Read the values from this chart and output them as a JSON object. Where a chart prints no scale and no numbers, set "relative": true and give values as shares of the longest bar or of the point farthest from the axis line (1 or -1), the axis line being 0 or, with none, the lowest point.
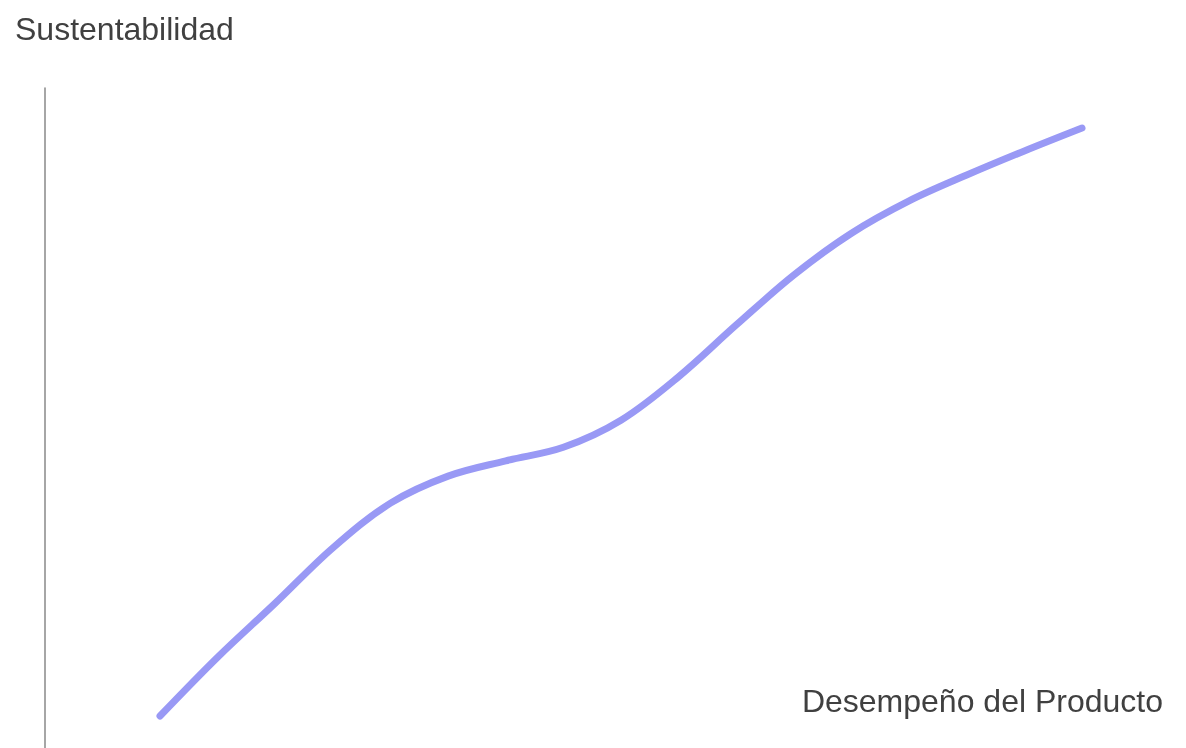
{
  "chart_data": {
    "type": "line",
    "ylabel": "Sustentabilidad",
    "xlabel": "Desempeño del Producto",
    "relative": true,
    "marker": "none",
    "categories": [
      null,
      null,
      null,
      null,
      null,
      null,
      null,
      null,
      null,
      null,
      null,
      null,
      null,
      null,
      null,
      null,
      null
    ],
    "series": [
      {
        "color": "#9999f5",
        "values": [
          0,
          0.1,
          0.192,
          0.286,
          0.362,
          0.408,
          0.434,
          0.457,
          0.503,
          0.577,
          0.665,
          0.75,
          0.821,
          0.876,
          0.92,
          0.961,
          1
        ]
      }
    ]
  }
}
